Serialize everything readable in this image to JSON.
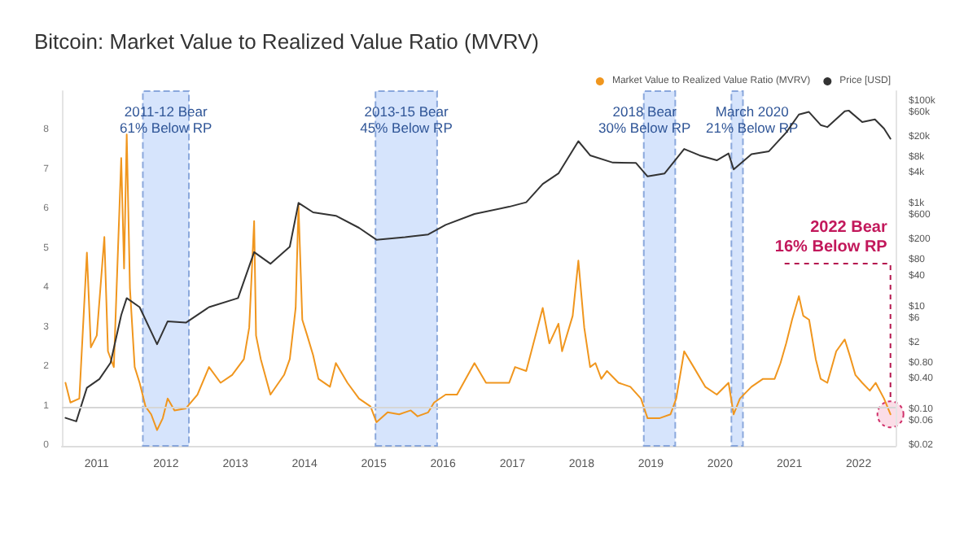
{
  "chart_data": {
    "type": "line",
    "title": "Bitcoin: Market Value to Realized Value Ratio (MVRV)",
    "xlim": [
      "2010-07-01",
      "2022-07-15"
    ],
    "xticks": [
      "2011",
      "2012",
      "2013",
      "2014",
      "2015",
      "2016",
      "2017",
      "2018",
      "2019",
      "2020",
      "2021",
      "2022"
    ],
    "ylim": [
      0,
      9
    ],
    "yticks": [
      0,
      1,
      2,
      3,
      4,
      5,
      6,
      7,
      8
    ],
    "y2lim": [
      0.02,
      160000
    ],
    "log": "y2",
    "y2ticks": [
      {
        "value": 0.02,
        "label": "$0.02"
      },
      {
        "value": 0.06,
        "label": "$0.06"
      },
      {
        "value": 0.1,
        "label": "$0.10"
      },
      {
        "value": 0.4,
        "label": "$0.40"
      },
      {
        "value": 0.8,
        "label": "$0.80"
      },
      {
        "value": 2,
        "label": "$2"
      },
      {
        "value": 6,
        "label": "$6"
      },
      {
        "value": 10,
        "label": "$10"
      },
      {
        "value": 40,
        "label": "$40"
      },
      {
        "value": 80,
        "label": "$80"
      },
      {
        "value": 200,
        "label": "$200"
      },
      {
        "value": 600,
        "label": "$600"
      },
      {
        "value": 1000,
        "label": "$1k"
      },
      {
        "value": 4000,
        "label": "$4k"
      },
      {
        "value": 8000,
        "label": "$8k"
      },
      {
        "value": 20000,
        "label": "$20k"
      },
      {
        "value": 60000,
        "label": "$60k"
      },
      {
        "value": 100000,
        "label": "$100k"
      }
    ],
    "legend": "top right",
    "marker": "none",
    "line_style": "solid",
    "series": [
      {
        "name": "Market Value to Realized Value Ratio (MVRV)",
        "color": "#f0961e",
        "x": [
          "2010-07-20",
          "2010-08-15",
          "2010-10-01",
          "2010-11-10",
          "2010-12-01",
          "2011-01-01",
          "2011-02-10",
          "2011-03-01",
          "2011-04-01",
          "2011-05-10",
          "2011-05-25",
          "2011-06-08",
          "2011-06-25",
          "2011-07-20",
          "2011-08-15",
          "2011-09-15",
          "2011-10-15",
          "2011-11-15",
          "2011-12-15",
          "2012-01-10",
          "2012-02-15",
          "2012-04-15",
          "2012-06-15",
          "2012-08-15",
          "2012-10-15",
          "2012-12-15",
          "2013-02-15",
          "2013-03-15",
          "2013-04-10",
          "2013-04-20",
          "2013-05-15",
          "2013-07-05",
          "2013-09-15",
          "2013-10-15",
          "2013-11-15",
          "2013-11-30",
          "2013-12-20",
          "2014-01-15",
          "2014-02-15",
          "2014-03-15",
          "2014-05-15",
          "2014-06-15",
          "2014-08-15",
          "2014-10-15",
          "2014-12-15",
          "2015-01-15",
          "2015-03-15",
          "2015-05-15",
          "2015-07-15",
          "2015-08-20",
          "2015-10-15",
          "2015-11-15",
          "2016-01-15",
          "2016-03-15",
          "2016-06-15",
          "2016-08-15",
          "2016-12-15",
          "2017-01-15",
          "2017-03-15",
          "2017-06-10",
          "2017-07-15",
          "2017-09-01",
          "2017-09-20",
          "2017-11-15",
          "2017-12-15",
          "2018-01-15",
          "2018-02-15",
          "2018-03-15",
          "2018-04-15",
          "2018-05-15",
          "2018-07-15",
          "2018-09-15",
          "2018-11-10",
          "2018-12-15",
          "2019-02-15",
          "2019-04-15",
          "2019-05-15",
          "2019-06-26",
          "2019-08-15",
          "2019-10-15",
          "2019-12-15",
          "2020-02-15",
          "2020-03-13",
          "2020-04-15",
          "2020-06-15",
          "2020-08-15",
          "2020-10-15",
          "2020-11-15",
          "2020-12-15",
          "2021-01-15",
          "2021-02-20",
          "2021-03-15",
          "2021-04-15",
          "2021-05-20",
          "2021-06-15",
          "2021-07-20",
          "2021-09-05",
          "2021-10-20",
          "2021-11-15",
          "2021-12-15",
          "2022-01-20",
          "2022-03-01",
          "2022-04-01",
          "2022-05-15",
          "2022-06-18"
        ],
        "values": [
          1.6,
          1.1,
          1.2,
          4.9,
          2.5,
          2.8,
          5.3,
          2.4,
          2.0,
          7.3,
          4.5,
          7.9,
          4.0,
          2.0,
          1.6,
          1.0,
          0.8,
          0.4,
          0.7,
          1.2,
          0.9,
          0.95,
          1.3,
          2.0,
          1.6,
          1.8,
          2.2,
          3.0,
          5.7,
          2.8,
          2.2,
          1.3,
          1.8,
          2.2,
          3.5,
          6.1,
          3.2,
          2.8,
          2.3,
          1.7,
          1.5,
          2.1,
          1.6,
          1.2,
          1.0,
          0.6,
          0.85,
          0.8,
          0.9,
          0.75,
          0.85,
          1.1,
          1.3,
          1.3,
          2.1,
          1.6,
          1.6,
          2.0,
          1.9,
          3.5,
          2.6,
          3.1,
          2.4,
          3.3,
          4.7,
          3.0,
          2.0,
          2.1,
          1.7,
          1.9,
          1.6,
          1.5,
          1.2,
          0.7,
          0.7,
          0.8,
          1.2,
          2.4,
          2.0,
          1.5,
          1.3,
          1.6,
          0.8,
          1.2,
          1.5,
          1.7,
          1.7,
          2.1,
          2.6,
          3.2,
          3.8,
          3.3,
          3.2,
          2.2,
          1.7,
          1.6,
          2.4,
          2.7,
          2.3,
          1.8,
          1.6,
          1.4,
          1.6,
          1.2,
          0.8
        ]
      },
      {
        "name": "Price [USD]",
        "color": "#333333",
        "axis": "y2",
        "x": [
          "2010-07-20",
          "2010-09-15",
          "2010-11-10",
          "2011-01-15",
          "2011-03-15",
          "2011-05-10",
          "2011-06-08",
          "2011-08-15",
          "2011-11-15",
          "2012-01-10",
          "2012-04-15",
          "2012-08-15",
          "2013-01-15",
          "2013-04-10",
          "2013-07-05",
          "2013-10-15",
          "2013-11-30",
          "2014-02-15",
          "2014-06-15",
          "2014-10-15",
          "2015-01-15",
          "2015-06-15",
          "2015-10-15",
          "2016-01-15",
          "2016-06-15",
          "2016-12-15",
          "2017-03-15",
          "2017-06-10",
          "2017-09-01",
          "2017-12-15",
          "2018-02-15",
          "2018-06-15",
          "2018-10-15",
          "2018-12-15",
          "2019-03-15",
          "2019-06-26",
          "2019-09-15",
          "2019-12-15",
          "2020-02-15",
          "2020-03-13",
          "2020-06-15",
          "2020-09-15",
          "2020-12-15",
          "2021-02-20",
          "2021-04-14",
          "2021-06-15",
          "2021-07-20",
          "2021-10-20",
          "2021-11-10",
          "2022-01-20",
          "2022-03-28",
          "2022-05-15",
          "2022-06-18"
        ],
        "values": [
          0.07,
          0.06,
          0.27,
          0.4,
          0.83,
          7,
          15,
          10,
          1.9,
          5.3,
          5,
          10,
          15,
          118,
          70,
          150,
          1070,
          700,
          600,
          350,
          205,
          230,
          260,
          400,
          650,
          900,
          1100,
          2500,
          4000,
          17000,
          9000,
          6500,
          6400,
          3500,
          4000,
          12000,
          9000,
          7200,
          9800,
          4800,
          9500,
          10800,
          25000,
          56000,
          63000,
          35000,
          32000,
          65000,
          67000,
          40000,
          45000,
          30000,
          19000
        ]
      }
    ],
    "bands": [
      {
        "axis": "x",
        "from": "2011-09-01",
        "to": "2012-05-01",
        "label": "2011-12 Bear\n61% Below RP",
        "color": "#cfdffb"
      },
      {
        "axis": "x",
        "from": "2015-01-10",
        "to": "2015-12-01",
        "label": "2013-15 Bear\n45% Below RP",
        "color": "#cfdffb"
      },
      {
        "axis": "x",
        "from": "2018-11-25",
        "to": "2019-05-10",
        "label": "2018 Bear\n30% Below RP",
        "color": "#cfdffb"
      },
      {
        "axis": "x",
        "from": "2020-03-01",
        "to": "2020-05-01",
        "label": "March 2020\n21% Below RP",
        "color": "#cfdffb"
      }
    ],
    "ref_lines": [
      {
        "axis": "y",
        "value": 1,
        "color": "#d6d6d6"
      }
    ],
    "annotations": [
      {
        "text": "2022 Bear\n16% Below RP",
        "x": "2022-06-18",
        "y": 0.8
      }
    ]
  }
}
